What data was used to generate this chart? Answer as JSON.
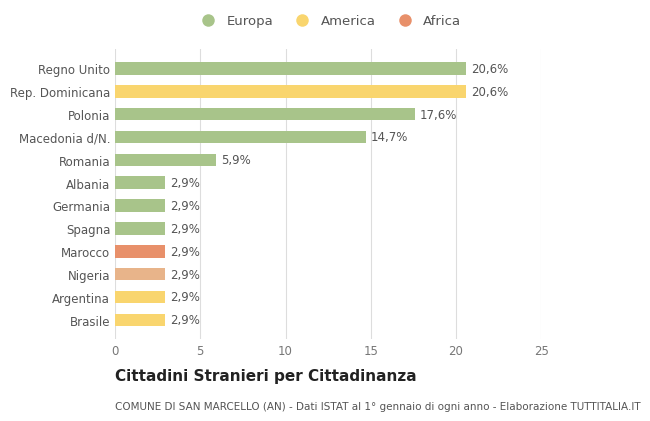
{
  "categories": [
    "Brasile",
    "Argentina",
    "Nigeria",
    "Marocco",
    "Spagna",
    "Germania",
    "Albania",
    "Romania",
    "Macedonia d/N.",
    "Polonia",
    "Rep. Dominicana",
    "Regno Unito"
  ],
  "values": [
    2.9,
    2.9,
    2.9,
    2.9,
    2.9,
    2.9,
    2.9,
    5.9,
    14.7,
    17.6,
    20.6,
    20.6
  ],
  "colors": [
    "#f9d56e",
    "#f9d56e",
    "#e8b48a",
    "#e8906a",
    "#a8c48a",
    "#a8c48a",
    "#a8c48a",
    "#a8c48a",
    "#a8c48a",
    "#a8c48a",
    "#f9d56e",
    "#a8c48a"
  ],
  "labels": [
    "2,9%",
    "2,9%",
    "2,9%",
    "2,9%",
    "2,9%",
    "2,9%",
    "2,9%",
    "5,9%",
    "14,7%",
    "17,6%",
    "20,6%",
    "20,6%"
  ],
  "legend": [
    {
      "label": "Europa",
      "color": "#a8c48a"
    },
    {
      "label": "America",
      "color": "#f9d56e"
    },
    {
      "label": "Africa",
      "color": "#e8906a"
    }
  ],
  "title": "Cittadini Stranieri per Cittadinanza",
  "subtitle": "COMUNE DI SAN MARCELLO (AN) - Dati ISTAT al 1° gennaio di ogni anno - Elaborazione TUTTITALIA.IT",
  "xlim": [
    0,
    25
  ],
  "xticks": [
    0,
    5,
    10,
    15,
    20,
    25
  ],
  "bg_color": "#ffffff",
  "grid_color": "#dddddd",
  "bar_height": 0.55,
  "title_fontsize": 11,
  "subtitle_fontsize": 7.5,
  "label_fontsize": 8.5,
  "tick_fontsize": 8.5,
  "legend_fontsize": 9.5
}
